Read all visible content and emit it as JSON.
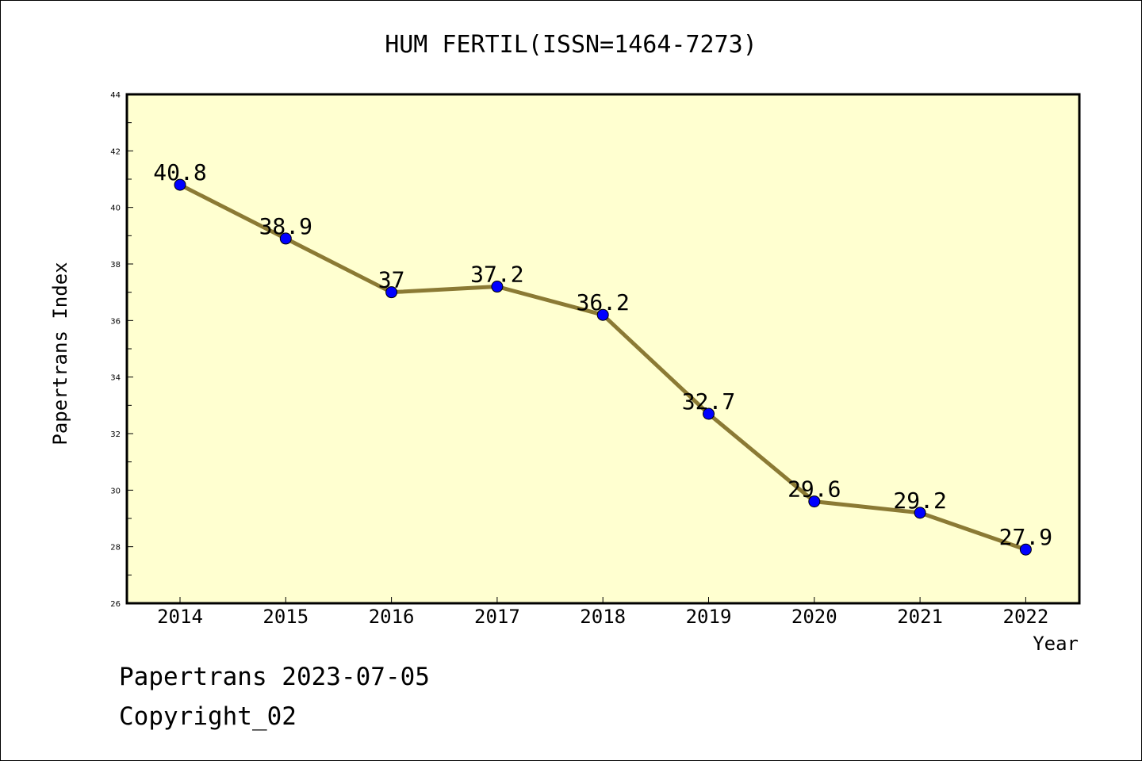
{
  "chart_data": {
    "type": "line",
    "title": "HUM FERTIL(ISSN=1464-7273)",
    "xlabel": "Year",
    "ylabel": "Papertrans Index",
    "ylim": [
      26,
      44
    ],
    "yticks": [
      "26",
      "28",
      "30",
      "32",
      "34",
      "36",
      "38",
      "40",
      "42",
      "44"
    ],
    "categories": [
      "2014",
      "2015",
      "2016",
      "2017",
      "2018",
      "2019",
      "2020",
      "2021",
      "2022"
    ],
    "values": [
      40.8,
      38.9,
      37,
      37.2,
      36.2,
      32.7,
      29.6,
      29.2,
      27.9
    ],
    "data_labels": [
      "40.8",
      "38.9",
      "37",
      "37.2",
      "36.2",
      "32.7",
      "29.6",
      "29.2",
      "27.9"
    ],
    "grid": false,
    "colors": {
      "plot_background": "#ffffd0",
      "line": "#8b7a34",
      "marker": "#0000ff"
    }
  },
  "footer": {
    "line1": "Papertrans 2023-07-05",
    "line2": "Copyright_02"
  }
}
